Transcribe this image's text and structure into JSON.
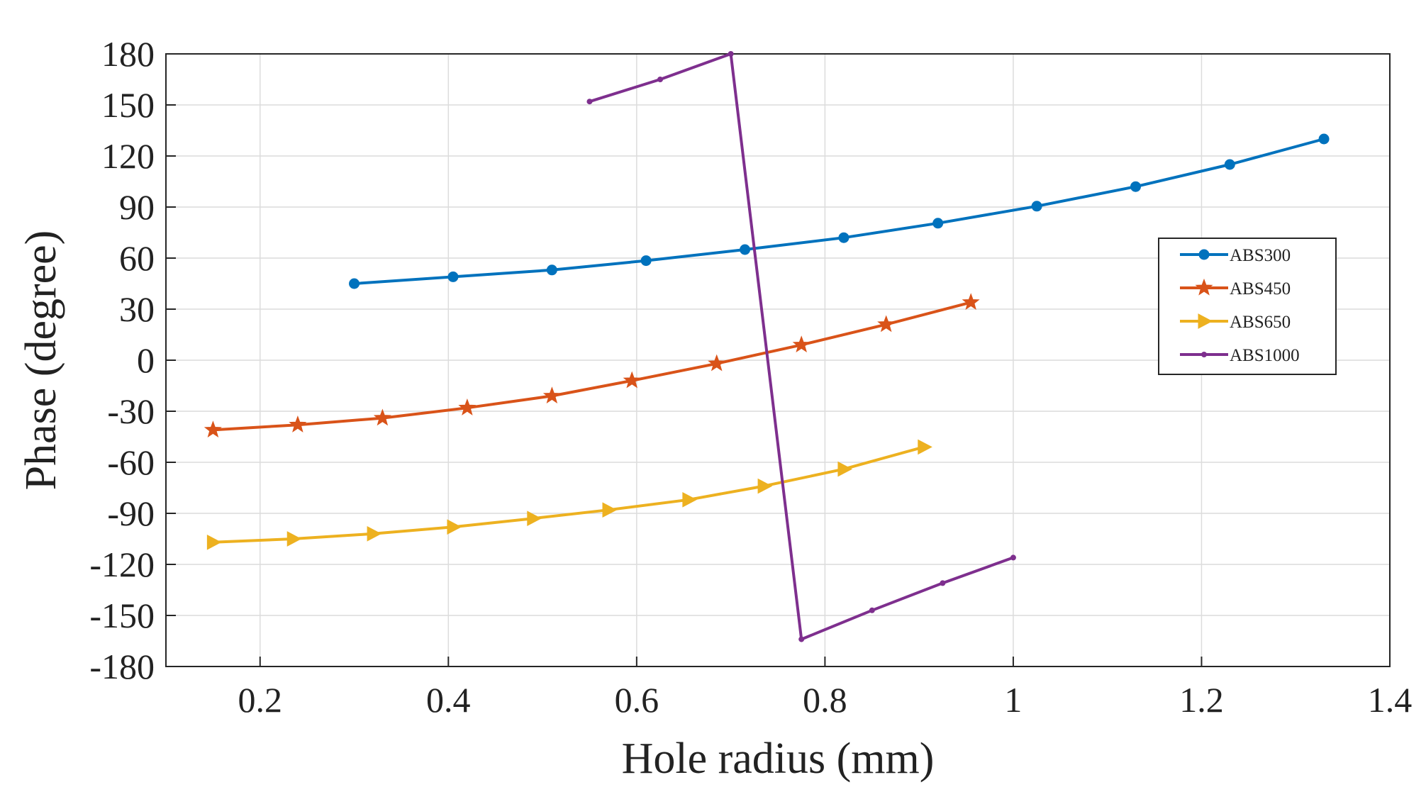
{
  "chart_data": {
    "type": "line",
    "title": "",
    "xlabel": "Hole radius (mm)",
    "ylabel": "Phase (degree)",
    "xlim": [
      0.1,
      1.4
    ],
    "ylim": [
      -180,
      180
    ],
    "xticks": [
      0.2,
      0.4,
      0.6,
      0.8,
      1,
      1.2,
      1.4
    ],
    "yticks": [
      -180,
      -150,
      -120,
      -90,
      -60,
      -30,
      0,
      30,
      60,
      90,
      120,
      150,
      180
    ],
    "grid": true,
    "legend_position": "right",
    "series": [
      {
        "name": "ABS300",
        "color": "#0072BD",
        "marker": "circle",
        "x": [
          0.3,
          0.405,
          0.51,
          0.61,
          0.715,
          0.82,
          0.92,
          1.025,
          1.13,
          1.23,
          1.33
        ],
        "y": [
          45,
          49,
          53,
          58.5,
          65,
          72,
          80.5,
          90.5,
          102,
          115,
          130
        ]
      },
      {
        "name": "ABS450",
        "color": "#D95319",
        "marker": "star",
        "x": [
          0.15,
          0.24,
          0.33,
          0.42,
          0.51,
          0.595,
          0.685,
          0.775,
          0.865,
          0.955
        ],
        "y": [
          -41,
          -38,
          -34,
          -28,
          -21,
          -12,
          -2,
          9,
          21,
          34
        ]
      },
      {
        "name": "ABS650",
        "color": "#EDB120",
        "marker": "triangle-right",
        "x": [
          0.15,
          0.235,
          0.32,
          0.405,
          0.49,
          0.57,
          0.655,
          0.735,
          0.82,
          0.905
        ],
        "y": [
          -107,
          -105,
          -102,
          -98,
          -93,
          -88,
          -82,
          -74,
          -64,
          -51
        ]
      },
      {
        "name": "ABS1000",
        "color": "#7E2F8E",
        "marker": "point",
        "x": [
          0.55,
          0.625,
          0.7,
          0.775,
          0.85,
          0.925,
          1.0
        ],
        "y": [
          152,
          165,
          180,
          -164,
          -147,
          -131,
          -116
        ]
      }
    ]
  }
}
